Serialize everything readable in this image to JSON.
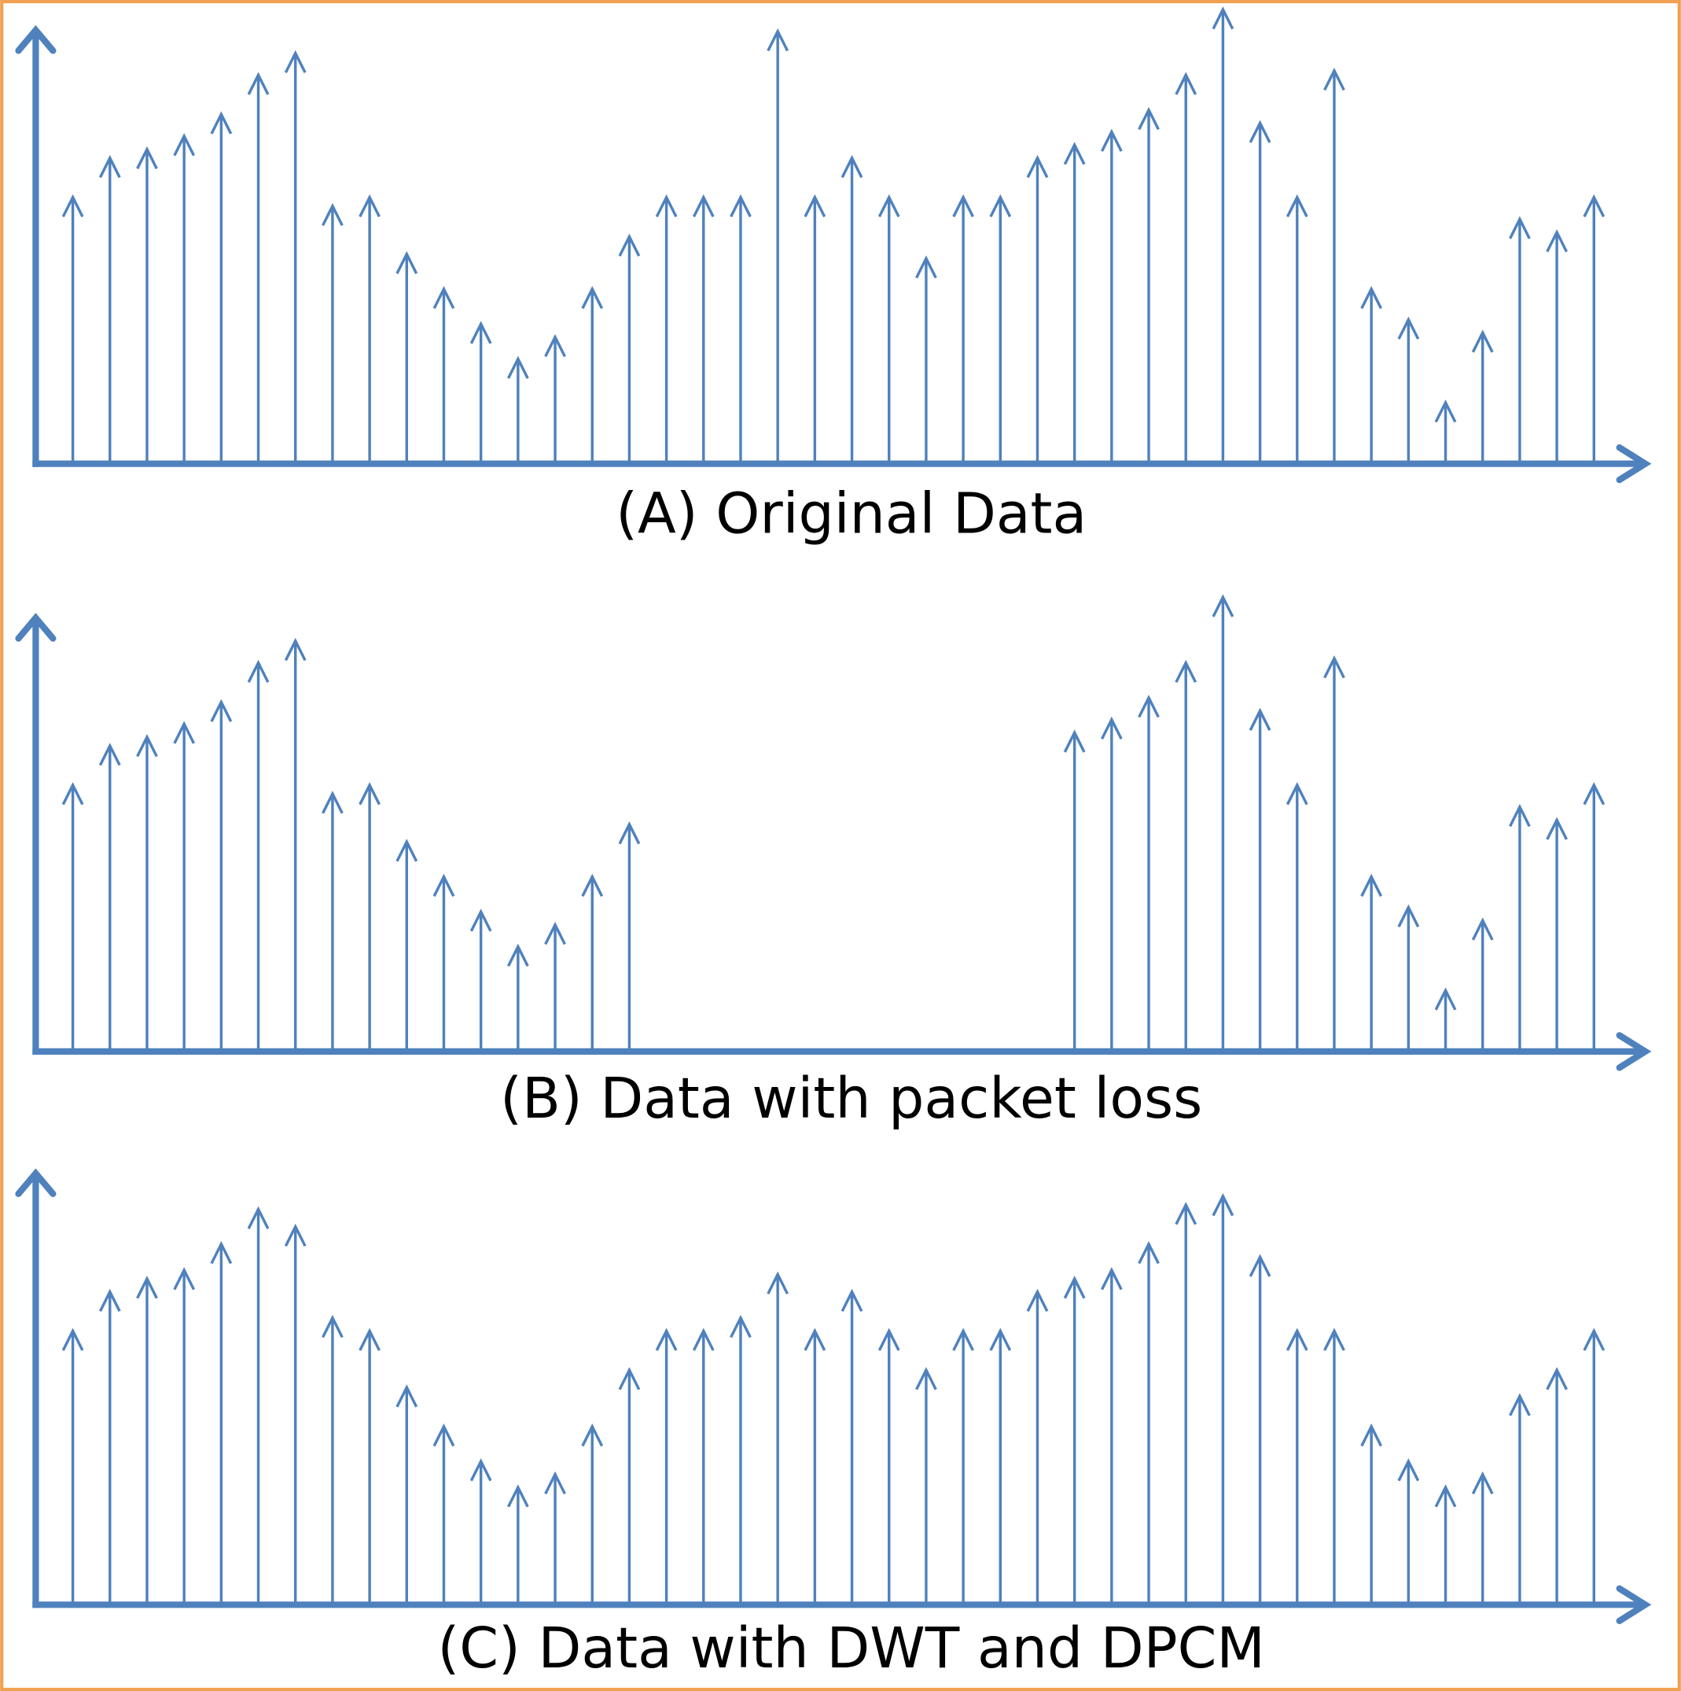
{
  "chart_data": [
    {
      "type": "stem",
      "title": "(A) Original Data",
      "color": "#4f81bd",
      "x": [
        1,
        2,
        3,
        4,
        5,
        6,
        7,
        8,
        9,
        10,
        11,
        12,
        13,
        14,
        15,
        16,
        17,
        18,
        19,
        20,
        21,
        22,
        23,
        24,
        25,
        26,
        27,
        28,
        29,
        30,
        31,
        32,
        33,
        34,
        35,
        36,
        37,
        38,
        39,
        40,
        41,
        42
      ],
      "values": [
        61,
        70,
        72,
        75,
        80,
        89,
        94,
        59,
        61,
        48,
        40,
        32,
        24,
        29,
        40,
        52,
        61,
        61,
        61,
        99,
        61,
        70,
        61,
        47,
        61,
        61,
        70,
        73,
        76,
        81,
        89,
        104,
        78,
        61,
        90,
        40,
        33,
        14,
        30,
        56,
        53,
        61
      ],
      "xlim": [
        0,
        43.5
      ],
      "ylim": [
        0,
        100
      ]
    },
    {
      "type": "stem",
      "title": "(B) Data with packet loss",
      "color": "#4f81bd",
      "x": [
        1,
        2,
        3,
        4,
        5,
        6,
        7,
        8,
        9,
        10,
        11,
        12,
        13,
        14,
        15,
        16,
        17,
        18,
        19,
        20,
        21,
        22,
        23,
        24,
        25,
        26,
        27,
        28,
        29,
        30,
        31,
        32,
        33,
        34,
        35,
        36,
        37,
        38,
        39,
        40,
        41,
        42
      ],
      "values": [
        61,
        70,
        72,
        75,
        80,
        89,
        94,
        59,
        61,
        48,
        40,
        32,
        24,
        29,
        40,
        52,
        null,
        null,
        null,
        null,
        null,
        null,
        null,
        null,
        null,
        null,
        null,
        73,
        76,
        81,
        89,
        104,
        78,
        61,
        90,
        40,
        33,
        14,
        30,
        56,
        53,
        61
      ],
      "xlim": [
        0,
        43.5
      ],
      "ylim": [
        0,
        100
      ]
    },
    {
      "type": "stem",
      "title": "(C) Data with DWT and DPCM",
      "color": "#4f81bd",
      "x": [
        1,
        2,
        3,
        4,
        5,
        6,
        7,
        8,
        9,
        10,
        11,
        12,
        13,
        14,
        15,
        16,
        17,
        18,
        19,
        20,
        21,
        22,
        23,
        24,
        25,
        26,
        27,
        28,
        29,
        30,
        31,
        32,
        33,
        34,
        35,
        36,
        37,
        38,
        39,
        40,
        41,
        42
      ],
      "values": [
        63,
        72,
        75,
        77,
        83,
        91,
        87,
        66,
        63,
        50,
        41,
        33,
        27,
        30,
        41,
        54,
        63,
        63,
        66,
        76,
        63,
        72,
        63,
        54,
        63,
        63,
        72,
        75,
        77,
        83,
        92,
        94,
        80,
        63,
        63,
        41,
        33,
        27,
        30,
        48,
        54,
        63
      ],
      "xlim": [
        0,
        43.5
      ],
      "ylim": [
        0,
        100
      ]
    }
  ]
}
